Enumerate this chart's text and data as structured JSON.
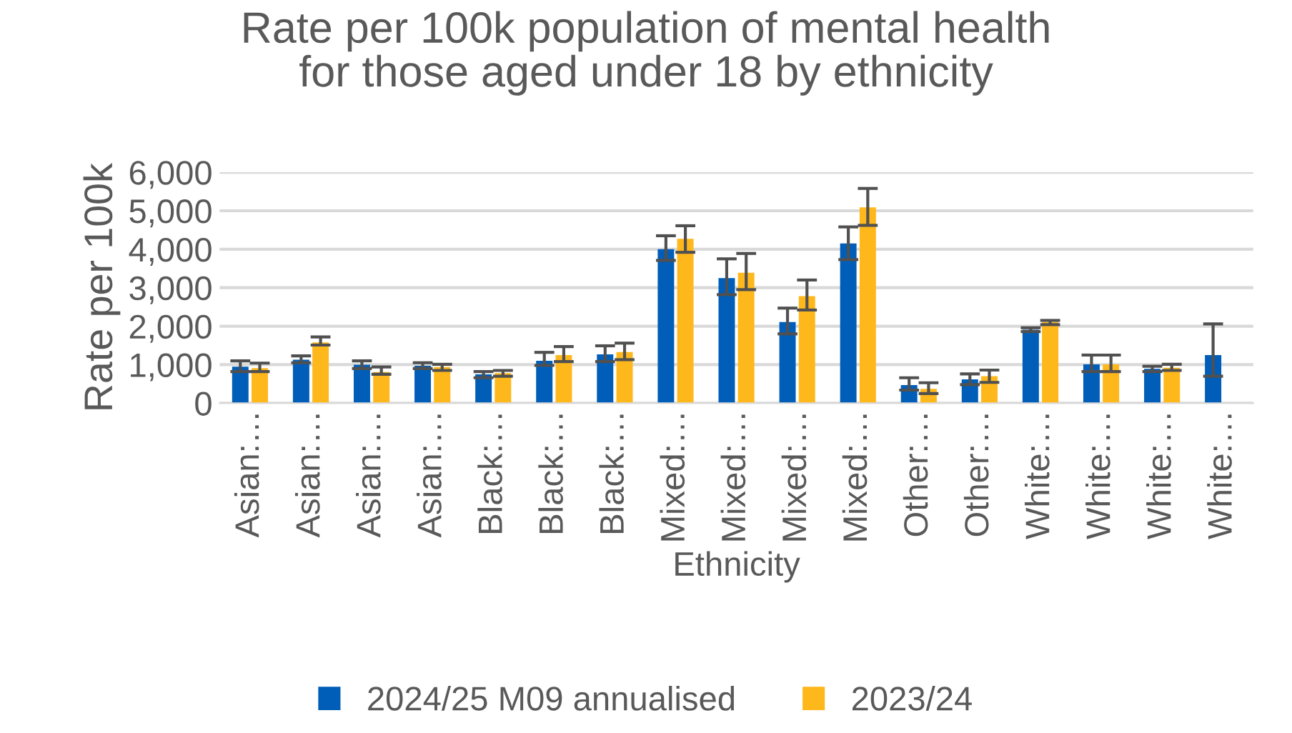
{
  "chart_data": {
    "type": "bar",
    "title": "Rate per 100k population of mental health\nfor those aged under 18 by ethnicity",
    "xlabel": "Ethnicity",
    "ylabel": "Rate per 100k",
    "categories": [
      "Asian:…",
      "Asian:…",
      "Asian:…",
      "Asian:…",
      "Black:…",
      "Black:…",
      "Black:…",
      "Mixed:…",
      "Mixed:…",
      "Mixed:…",
      "Mixed:…",
      "Other:…",
      "Other:…",
      "White:…",
      "White:…",
      "White:…",
      "White:…"
    ],
    "series": [
      {
        "name": "2024/25 M09 annualised",
        "color": "#005eb8",
        "values": [
          950,
          1130,
          1000,
          970,
          750,
          1100,
          1270,
          4000,
          3250,
          2110,
          4150,
          470,
          620,
          1910,
          1010,
          890,
          1250
        ],
        "errors": [
          [
            820,
            1100
          ],
          [
            1050,
            1230
          ],
          [
            900,
            1100
          ],
          [
            900,
            1050
          ],
          [
            660,
            820
          ],
          [
            980,
            1320
          ],
          [
            1080,
            1490
          ],
          [
            3710,
            4350
          ],
          [
            2820,
            3750
          ],
          [
            1800,
            2470
          ],
          [
            3730,
            4580
          ],
          [
            340,
            660
          ],
          [
            480,
            760
          ],
          [
            1860,
            1960
          ],
          [
            820,
            1250
          ],
          [
            820,
            960
          ],
          [
            700,
            2060
          ]
        ]
      },
      {
        "name": "2023/24",
        "color": "#ffb81c",
        "values": [
          910,
          1580,
          810,
          940,
          780,
          1250,
          1330,
          4270,
          3390,
          2780,
          5090,
          370,
          700,
          2110,
          1010,
          920,
          0
        ],
        "errors": [
          [
            820,
            1040
          ],
          [
            1510,
            1720
          ],
          [
            750,
            940
          ],
          [
            850,
            1010
          ],
          [
            700,
            850
          ],
          [
            1080,
            1470
          ],
          [
            1130,
            1560
          ],
          [
            3920,
            4610
          ],
          [
            2950,
            3890
          ],
          [
            2420,
            3200
          ],
          [
            4620,
            5580
          ],
          [
            250,
            530
          ],
          [
            540,
            860
          ],
          [
            2040,
            2150
          ],
          [
            820,
            1250
          ],
          [
            850,
            1010
          ],
          null
        ]
      }
    ],
    "ylim": [
      0,
      6000
    ],
    "yticks": [
      {
        "value": 0,
        "label": "0"
      },
      {
        "value": 1000,
        "label": "1,000"
      },
      {
        "value": 2000,
        "label": "2,000"
      },
      {
        "value": 3000,
        "label": "3,000"
      },
      {
        "value": 4000,
        "label": "4,000"
      },
      {
        "value": 5000,
        "label": "5,000"
      },
      {
        "value": 6000,
        "label": "6,000"
      }
    ],
    "grid": "y",
    "legend": "bottom"
  }
}
